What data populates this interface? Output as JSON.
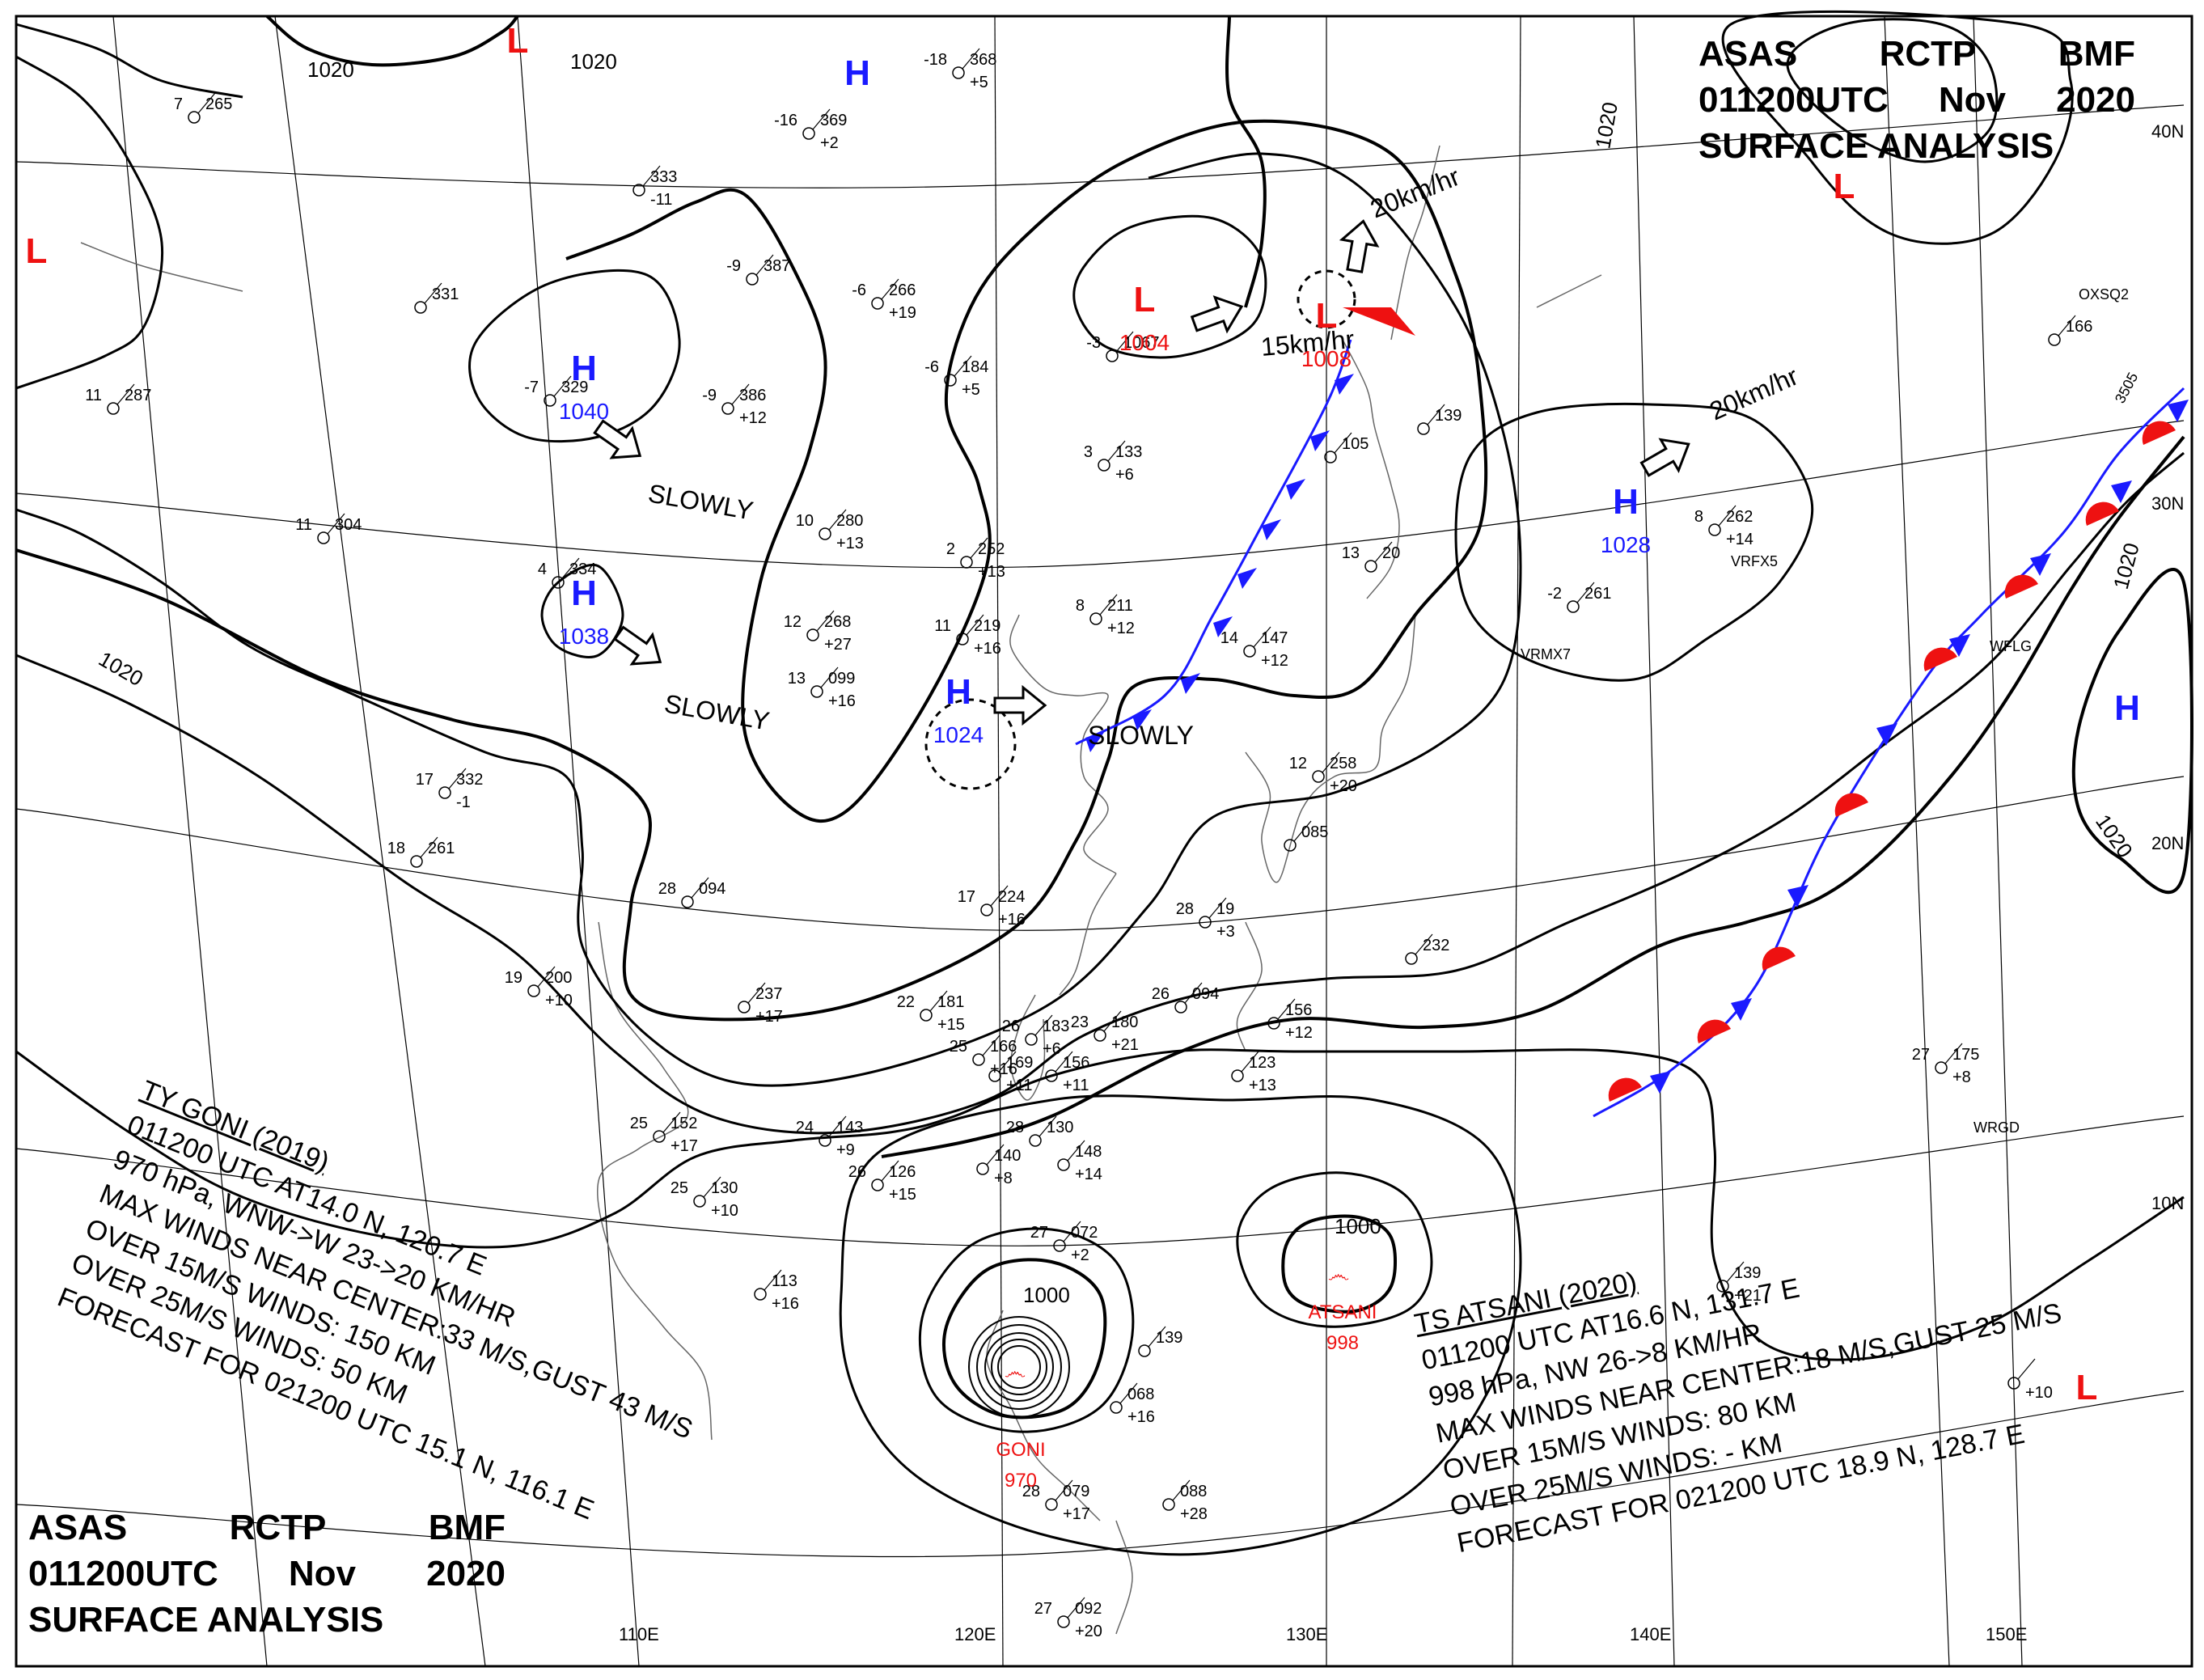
{
  "header": {
    "agency": "ASAS",
    "station": "RCTP",
    "office": "BMF",
    "time": "011200UTC",
    "month": "Nov",
    "year": "2020",
    "title": "SURFACE ANALYSIS"
  },
  "map": {
    "longitude_labels": [
      "110E",
      "120E",
      "130E",
      "140E",
      "150E"
    ],
    "latitude_labels": [
      "40N",
      "30N",
      "20N",
      "10N"
    ]
  },
  "isobar_labels": [
    "1020",
    "1020",
    "1020",
    "1020",
    "1020",
    "1020",
    "1000",
    "1000"
  ],
  "pressure_centers": [
    {
      "type": "H",
      "value": "1040",
      "color": "#1a1aff"
    },
    {
      "type": "H",
      "value": "1038",
      "color": "#1a1aff"
    },
    {
      "type": "H",
      "value": "1024",
      "color": "#1a1aff"
    },
    {
      "type": "H",
      "value": "1028",
      "color": "#1a1aff"
    },
    {
      "type": "H",
      "value": "",
      "color": "#1a1aff"
    },
    {
      "type": "H",
      "value": "",
      "color": "#1a1aff"
    },
    {
      "type": "L",
      "value": "1004",
      "color": "#ee1111"
    },
    {
      "type": "L",
      "value": "1008",
      "color": "#ee1111"
    },
    {
      "type": "L",
      "value": "",
      "color": "#ee1111"
    },
    {
      "type": "L",
      "value": "",
      "color": "#ee1111"
    },
    {
      "type": "L",
      "value": "",
      "color": "#ee1111"
    },
    {
      "type": "L",
      "value": "",
      "color": "#ee1111"
    }
  ],
  "motion_labels": [
    "SLOWLY",
    "SLOWLY",
    "SLOWLY",
    "20km/hr",
    "15km/hr",
    "20km/hr"
  ],
  "tropical_cyclones": [
    {
      "name": "GONI",
      "pressure": "970"
    },
    {
      "name": "ATSANI",
      "pressure": "998"
    }
  ],
  "goni_info": {
    "lines": [
      "TY  GONI  (2019)",
      "011200 UTC  AT14.0 N, 120.7 E",
      "970 hPa, WNW->W  23->20 KM/HR",
      "MAX WINDS NEAR CENTER:33 M/S,GUST 43 M/S",
      "OVER 15M/S WINDS: 150 KM",
      "OVER 25M/S WINDS: 50 KM",
      "FORECAST FOR 021200 UTC 15.1 N, 116.1 E"
    ]
  },
  "atsani_info": {
    "lines": [
      "TS  ATSANI  (2020)",
      "011200 UTC  AT16.6 N, 131.7 E",
      "998 hPa, NW  26->8 KM/HR",
      "MAX WINDS NEAR CENTER:18 M/S,GUST 25 M/S",
      "OVER 15M/S WINDS: 80 KM",
      "OVER 25M/S WINDS: - KM",
      "FORECAST FOR 021200 UTC 18.9 N, 128.7 E"
    ]
  },
  "stations": [
    {
      "t": "-18",
      "p": "368",
      "d": "+5"
    },
    {
      "t": "-16",
      "p": "369",
      "d": "+2"
    },
    {
      "t": "7",
      "p": "265",
      "d": ""
    },
    {
      "t": "",
      "p": "333",
      "d": "-11"
    },
    {
      "t": "-9",
      "p": "387",
      "d": ""
    },
    {
      "t": "",
      "p": "331",
      "d": ""
    },
    {
      "t": "-6",
      "p": "266",
      "d": "+19"
    },
    {
      "t": "-3",
      "p": "1067",
      "d": ""
    },
    {
      "t": "-6",
      "p": "184",
      "d": "+5"
    },
    {
      "t": "-7",
      "p": "329",
      "d": ""
    },
    {
      "t": "-9",
      "p": "386",
      "d": "+12"
    },
    {
      "t": "11",
      "p": "287",
      "d": ""
    },
    {
      "t": "3",
      "p": "133",
      "d": "+6"
    },
    {
      "t": "11",
      "p": "304",
      "d": ""
    },
    {
      "t": "4",
      "p": "334",
      "d": ""
    },
    {
      "t": "10",
      "p": "280",
      "d": "+13"
    },
    {
      "t": "2",
      "p": "252",
      "d": "+13"
    },
    {
      "t": "8",
      "p": "211",
      "d": "+12"
    },
    {
      "t": "12",
      "p": "268",
      "d": "+27"
    },
    {
      "t": "11",
      "p": "219",
      "d": "+16"
    },
    {
      "t": "14",
      "p": "147",
      "d": "+12"
    },
    {
      "t": "-2",
      "p": "261",
      "d": ""
    },
    {
      "t": "8",
      "p": "262",
      "d": "+14"
    },
    {
      "t": "17",
      "p": "332",
      "d": "-1"
    },
    {
      "t": "18",
      "p": "261",
      "d": ""
    },
    {
      "t": "13",
      "p": "099",
      "d": "+16"
    },
    {
      "t": "",
      "p": "085",
      "d": ""
    },
    {
      "t": "12",
      "p": "258",
      "d": "+20"
    },
    {
      "t": "28",
      "p": "094",
      "d": ""
    },
    {
      "t": "17",
      "p": "224",
      "d": "+16"
    },
    {
      "t": "28",
      "p": "19",
      "d": "+3"
    },
    {
      "t": "",
      "p": "232",
      "d": ""
    },
    {
      "t": "",
      "p": "237",
      "d": "+17"
    },
    {
      "t": "26",
      "p": "094",
      "d": ""
    },
    {
      "t": "19",
      "p": "200",
      "d": "+10"
    },
    {
      "t": "22",
      "p": "181",
      "d": "+15"
    },
    {
      "t": "26",
      "p": "183",
      "d": "+6"
    },
    {
      "t": "27",
      "p": "175",
      "d": "+8"
    },
    {
      "t": "",
      "p": "123",
      "d": "+13"
    },
    {
      "t": "23",
      "p": "180",
      "d": "+21"
    },
    {
      "t": "25",
      "p": "166",
      "d": "+16"
    },
    {
      "t": "",
      "p": "156",
      "d": "+12"
    },
    {
      "t": "",
      "p": "169",
      "d": "+11"
    },
    {
      "t": "",
      "p": "156",
      "d": "+11"
    },
    {
      "t": "25",
      "p": "152",
      "d": "+17"
    },
    {
      "t": "24",
      "p": "143",
      "d": "+9"
    },
    {
      "t": "",
      "p": "140",
      "d": "+8"
    },
    {
      "t": "28",
      "p": "130",
      "d": ""
    },
    {
      "t": "",
      "p": "148",
      "d": "+14"
    },
    {
      "t": "25",
      "p": "130",
      "d": "+10"
    },
    {
      "t": "26",
      "p": "126",
      "d": "+15"
    },
    {
      "t": "",
      "p": "113",
      "d": "+16"
    },
    {
      "t": "27",
      "p": "072",
      "d": "+2"
    },
    {
      "t": "",
      "p": "139",
      "d": "+21"
    },
    {
      "t": "",
      "p": "068",
      "d": "+16"
    },
    {
      "t": "28",
      "p": "079",
      "d": "+17"
    },
    {
      "t": "",
      "p": "088",
      "d": "+28"
    },
    {
      "t": "27",
      "p": "092",
      "d": "+20"
    },
    {
      "t": "",
      "p": "",
      "d": "+10"
    },
    {
      "t": "",
      "p": "139",
      "d": ""
    },
    {
      "t": "",
      "p": "166",
      "d": ""
    },
    {
      "t": "13",
      "p": "20",
      "d": ""
    },
    {
      "t": "",
      "p": "105",
      "d": ""
    },
    {
      "t": "",
      "p": "139",
      "d": ""
    }
  ],
  "ship_ids": [
    "OXSQ2",
    "VRFX5",
    "VRMX7",
    "WFLG",
    "WRGD",
    "3505"
  ]
}
